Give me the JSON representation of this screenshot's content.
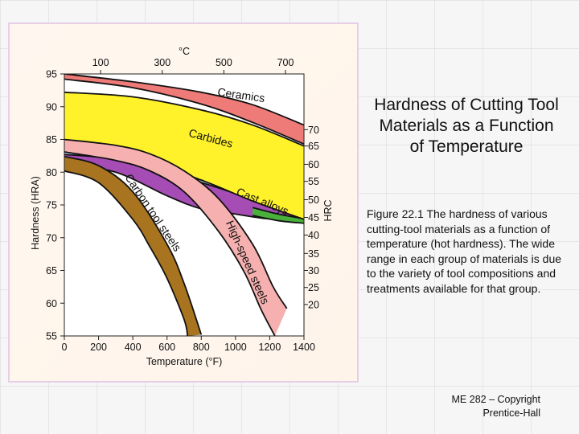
{
  "slide": {
    "title": "Hardness of Cutting Tool Materials as a Function of Temperature",
    "caption": "Figure 22.1  The hardness of various cutting-tool materials as a function of temperature (hot hardness).  The wide range in each group of materials is due to the variety of tool compositions and treatments available for that group.",
    "footer_line1": "ME 282 – Copyright",
    "footer_line2": "Prentice-Hall"
  },
  "chart_data": {
    "type": "area",
    "xlabel": "Temperature (°F)",
    "ylabel": "Hardness (HRA)",
    "right_axis_label": "HRC",
    "top_axis_label": "°C",
    "xlim": [
      0,
      1400
    ],
    "ylim": [
      55,
      95
    ],
    "x_ticks": [
      0,
      200,
      400,
      600,
      800,
      1000,
      1200,
      1400
    ],
    "y_ticks": [
      55,
      60,
      65,
      70,
      75,
      80,
      85,
      90,
      95
    ],
    "top_ticks": [
      {
        "label": "100",
        "x": 212
      },
      {
        "label": "300",
        "x": 572
      },
      {
        "label": "500",
        "x": 932
      },
      {
        "label": "700",
        "x": 1292
      }
    ],
    "right_ticks": [
      {
        "label": "70",
        "y": 86.5
      },
      {
        "label": "65",
        "y": 84.0
      },
      {
        "label": "60",
        "y": 81.2
      },
      {
        "label": "55",
        "y": 78.6
      },
      {
        "label": "50",
        "y": 75.8
      },
      {
        "label": "45",
        "y": 73.1
      },
      {
        "label": "40",
        "y": 70.4
      },
      {
        "label": "35",
        "y": 67.6
      },
      {
        "label": "30",
        "y": 65.0
      },
      {
        "label": "25",
        "y": 62.4
      },
      {
        "label": "20",
        "y": 59.8
      }
    ],
    "series": [
      {
        "name": "Ceramics",
        "color": "#ef7b78",
        "upper": [
          [
            0,
            95
          ],
          [
            400,
            93.8
          ],
          [
            800,
            92.2
          ],
          [
            1100,
            90.3
          ],
          [
            1400,
            87.2
          ]
        ],
        "lower": [
          [
            0,
            94.2
          ],
          [
            400,
            92.9
          ],
          [
            800,
            90.4
          ],
          [
            1100,
            87.6
          ],
          [
            1400,
            84.3
          ]
        ],
        "label_pos": [
          1030,
          91.2
        ],
        "label_angle": 8
      },
      {
        "name": "Carbides",
        "color": "#fff22a",
        "upper": [
          [
            0,
            92.2
          ],
          [
            400,
            91.5
          ],
          [
            800,
            89.5
          ],
          [
            1100,
            87.2
          ],
          [
            1400,
            84.0
          ]
        ],
        "lower": [
          [
            0,
            83.6
          ],
          [
            400,
            82.3
          ],
          [
            800,
            78.8
          ],
          [
            1100,
            75.6
          ],
          [
            1400,
            72.8
          ]
        ],
        "label_pos": [
          850,
          84.6
        ],
        "label_angle": 15
      },
      {
        "name": "Cast alloys",
        "color": "#a64db5",
        "upper": [
          [
            0,
            82.7
          ],
          [
            300,
            82.0
          ],
          [
            600,
            80.0
          ],
          [
            900,
            77.6
          ],
          [
            1100,
            75.8
          ],
          [
            1250,
            74.6
          ],
          [
            1400,
            73.2
          ]
        ],
        "lower": [
          [
            0,
            81.2
          ],
          [
            300,
            80.0
          ],
          [
            600,
            76.4
          ],
          [
            800,
            74.4
          ],
          [
            1000,
            73.6
          ],
          [
            1150,
            73.0
          ],
          [
            1250,
            72.8
          ],
          [
            1400,
            72.7
          ]
        ],
        "label_pos": [
          1150,
          75.0
        ],
        "label_angle": 22
      },
      {
        "name": "High-speed steels",
        "color": "#f7b0b0",
        "upper": [
          [
            0,
            85.0
          ],
          [
            300,
            84.1
          ],
          [
            500,
            82.8
          ],
          [
            700,
            80.2
          ],
          [
            900,
            76.0
          ],
          [
            1100,
            69.0
          ],
          [
            1220,
            62.5
          ],
          [
            1300,
            59.2
          ]
        ],
        "lower": [
          [
            0,
            83.1
          ],
          [
            300,
            81.8
          ],
          [
            500,
            80.2
          ],
          [
            700,
            77.0
          ],
          [
            900,
            71.0
          ],
          [
            1050,
            64.8
          ],
          [
            1150,
            59.0
          ],
          [
            1230,
            55.0
          ]
        ],
        "label_pos": [
          1050,
          66.0
        ],
        "label_angle": 66
      },
      {
        "name": "Carbon tool steels",
        "color": "#a87420",
        "upper": [
          [
            0,
            82.4
          ],
          [
            200,
            81.0
          ],
          [
            400,
            77.0
          ],
          [
            600,
            69.0
          ],
          [
            700,
            63.0
          ],
          [
            800,
            55.2
          ]
        ],
        "lower": [
          [
            0,
            80.2
          ],
          [
            200,
            78.4
          ],
          [
            400,
            72.8
          ],
          [
            500,
            68.6
          ],
          [
            600,
            63.8
          ],
          [
            700,
            57.5
          ],
          [
            720,
            55.0
          ]
        ],
        "label_pos": [
          500,
          73.5
        ],
        "label_angle": 56
      }
    ],
    "blue_band": {
      "color": "#bac8e6",
      "upper": [
        [
          0,
          83.2
        ],
        [
          300,
          82.4
        ],
        [
          600,
          80.4
        ],
        [
          900,
          78.0
        ],
        [
          1200,
          75.6
        ],
        [
          1400,
          73.9
        ]
      ],
      "lower": [
        [
          0,
          82.2
        ],
        [
          300,
          81.2
        ],
        [
          600,
          78.6
        ],
        [
          900,
          75.8
        ],
        [
          1200,
          73.6
        ],
        [
          1400,
          72.4
        ]
      ]
    },
    "green_band": {
      "color": "#49b13b",
      "upper": [
        [
          1100,
          74.6
        ],
        [
          1250,
          73.6
        ],
        [
          1400,
          72.9
        ]
      ],
      "lower": [
        [
          1100,
          73.4
        ],
        [
          1250,
          72.6
        ],
        [
          1400,
          72.2
        ]
      ]
    }
  }
}
